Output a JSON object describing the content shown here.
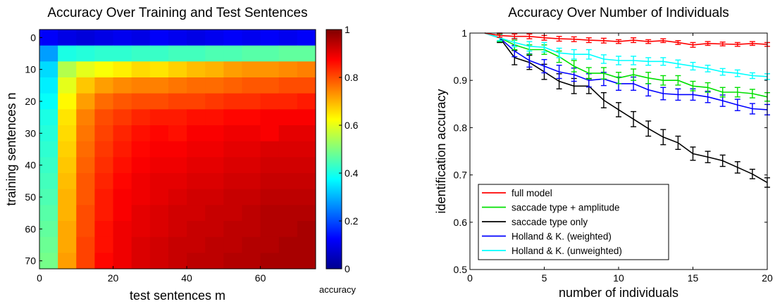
{
  "chart_data": [
    {
      "type": "heatmap",
      "title": "Accuracy Over Training and Test Sentences",
      "xlabel": "test sentences m",
      "ylabel": "training sentences n",
      "colorbar_label": "accuracy",
      "colormap": "jet",
      "xlim": [
        0,
        75
      ],
      "ylim": [
        0,
        75
      ],
      "x_ticks": [
        "0",
        "20",
        "40",
        "60"
      ],
      "y_ticks": [
        "0",
        "10",
        "20",
        "30",
        "40",
        "50",
        "60",
        "70"
      ],
      "colorbar_ticks": [
        "0",
        "0.2",
        "0.4",
        "0.6",
        "0.8",
        "1"
      ],
      "colorbar_range": [
        0,
        1
      ],
      "x": [
        0,
        5,
        10,
        15,
        20,
        25,
        30,
        35,
        40,
        45,
        50,
        55,
        60,
        65,
        70
      ],
      "y": [
        0,
        5,
        10,
        15,
        20,
        25,
        30,
        35,
        40,
        45,
        50,
        55,
        60,
        65,
        70
      ],
      "z": [
        [
          0.12,
          0.1,
          0.09,
          0.1,
          0.11,
          0.1,
          0.12,
          0.11,
          0.1,
          0.11,
          0.12,
          0.11,
          0.12,
          0.11,
          0.12
        ],
        [
          0.28,
          0.4,
          0.41,
          0.42,
          0.42,
          0.43,
          0.43,
          0.44,
          0.44,
          0.45,
          0.45,
          0.46,
          0.46,
          0.47,
          0.47
        ],
        [
          0.34,
          0.55,
          0.6,
          0.62,
          0.64,
          0.66,
          0.65,
          0.67,
          0.69,
          0.7,
          0.72,
          0.73,
          0.73,
          0.74,
          0.75
        ],
        [
          0.36,
          0.6,
          0.68,
          0.72,
          0.74,
          0.75,
          0.75,
          0.76,
          0.77,
          0.77,
          0.78,
          0.79,
          0.79,
          0.8,
          0.8
        ],
        [
          0.38,
          0.63,
          0.72,
          0.77,
          0.79,
          0.8,
          0.8,
          0.81,
          0.81,
          0.82,
          0.83,
          0.83,
          0.84,
          0.84,
          0.85
        ],
        [
          0.4,
          0.65,
          0.75,
          0.8,
          0.82,
          0.84,
          0.85,
          0.85,
          0.86,
          0.86,
          0.87,
          0.87,
          0.88,
          0.88,
          0.88
        ],
        [
          0.41,
          0.66,
          0.76,
          0.81,
          0.84,
          0.86,
          0.87,
          0.86,
          0.88,
          0.88,
          0.89,
          0.89,
          0.88,
          0.9,
          0.9
        ],
        [
          0.42,
          0.67,
          0.77,
          0.82,
          0.85,
          0.87,
          0.88,
          0.88,
          0.89,
          0.89,
          0.9,
          0.9,
          0.91,
          0.91,
          0.91
        ],
        [
          0.43,
          0.68,
          0.78,
          0.83,
          0.86,
          0.88,
          0.89,
          0.89,
          0.9,
          0.9,
          0.91,
          0.91,
          0.92,
          0.92,
          0.92
        ],
        [
          0.44,
          0.69,
          0.79,
          0.84,
          0.87,
          0.89,
          0.9,
          0.9,
          0.91,
          0.91,
          0.92,
          0.92,
          0.93,
          0.93,
          0.93
        ],
        [
          0.45,
          0.7,
          0.79,
          0.85,
          0.88,
          0.89,
          0.9,
          0.91,
          0.92,
          0.92,
          0.93,
          0.93,
          0.94,
          0.94,
          0.94
        ],
        [
          0.46,
          0.7,
          0.8,
          0.85,
          0.88,
          0.9,
          0.91,
          0.92,
          0.92,
          0.93,
          0.93,
          0.94,
          0.95,
          0.95,
          0.95
        ],
        [
          0.47,
          0.71,
          0.8,
          0.86,
          0.89,
          0.9,
          0.91,
          0.92,
          0.93,
          0.93,
          0.94,
          0.94,
          0.95,
          0.95,
          0.96
        ],
        [
          0.48,
          0.71,
          0.81,
          0.86,
          0.89,
          0.91,
          0.92,
          0.93,
          0.93,
          0.94,
          0.94,
          0.95,
          0.95,
          0.96,
          0.96
        ],
        [
          0.49,
          0.72,
          0.81,
          0.87,
          0.89,
          0.91,
          0.92,
          0.93,
          0.94,
          0.94,
          0.95,
          0.95,
          0.96,
          0.96,
          0.96
        ]
      ]
    },
    {
      "type": "line",
      "title": "Accuracy Over Number of Individuals",
      "xlabel": "number of individuals",
      "ylabel": "identification accuracy",
      "xlim": [
        0,
        20
      ],
      "ylim": [
        0.5,
        1
      ],
      "x_ticks": [
        "0",
        "5",
        "10",
        "15",
        "20"
      ],
      "y_ticks": [
        "0.5",
        "0.6",
        "0.7",
        "0.8",
        "0.9",
        "1"
      ],
      "legend_position": "bottom-left",
      "x": [
        1,
        2,
        3,
        4,
        5,
        6,
        7,
        8,
        9,
        10,
        11,
        12,
        13,
        14,
        15,
        16,
        17,
        18,
        19,
        20
      ],
      "series": [
        {
          "name": "full model",
          "color": "#ff0000",
          "values": [
            1.0,
            0.995,
            0.993,
            0.993,
            0.99,
            0.988,
            0.987,
            0.985,
            0.984,
            0.982,
            0.985,
            0.982,
            0.984,
            0.98,
            0.975,
            0.978,
            0.977,
            0.976,
            0.978,
            0.976
          ],
          "errors": [
            0,
            0.004,
            0.005,
            0.005,
            0.005,
            0.005,
            0.005,
            0.005,
            0.005,
            0.004,
            0.005,
            0.004,
            0.004,
            0.004,
            0.005,
            0.004,
            0.004,
            0.004,
            0.004,
            0.004
          ]
        },
        {
          "name": "saccade type + amplitude",
          "color": "#00e000",
          "values": [
            1.0,
            0.99,
            0.975,
            0.965,
            0.965,
            0.95,
            0.93,
            0.915,
            0.915,
            0.905,
            0.912,
            0.905,
            0.9,
            0.9,
            0.888,
            0.885,
            0.875,
            0.875,
            0.872,
            0.865
          ],
          "errors": [
            0,
            0.008,
            0.01,
            0.01,
            0.01,
            0.012,
            0.012,
            0.012,
            0.012,
            0.012,
            0.012,
            0.012,
            0.01,
            0.01,
            0.01,
            0.01,
            0.01,
            0.01,
            0.009,
            0.009
          ]
        },
        {
          "name": "saccade type only",
          "color": "#000000",
          "values": [
            1.0,
            0.99,
            0.948,
            0.938,
            0.918,
            0.898,
            0.888,
            0.888,
            0.858,
            0.838,
            0.818,
            0.798,
            0.78,
            0.768,
            0.745,
            0.738,
            0.73,
            0.716,
            0.702,
            0.684
          ],
          "errors": [
            0,
            0.01,
            0.015,
            0.015,
            0.016,
            0.016,
            0.016,
            0.016,
            0.016,
            0.015,
            0.016,
            0.016,
            0.016,
            0.014,
            0.014,
            0.012,
            0.012,
            0.012,
            0.01,
            0.01
          ]
        },
        {
          "name": "Holland & K. (weighted)",
          "color": "#0000ff",
          "values": [
            1.0,
            0.99,
            0.962,
            0.942,
            0.93,
            0.918,
            0.912,
            0.9,
            0.903,
            0.893,
            0.893,
            0.88,
            0.872,
            0.87,
            0.87,
            0.865,
            0.857,
            0.848,
            0.84,
            0.838
          ],
          "errors": [
            0,
            0.008,
            0.012,
            0.014,
            0.014,
            0.014,
            0.014,
            0.014,
            0.014,
            0.014,
            0.014,
            0.013,
            0.013,
            0.012,
            0.012,
            0.012,
            0.012,
            0.012,
            0.011,
            0.011
          ]
        },
        {
          "name": "Holland & K. (unweighted)",
          "color": "#00ffff",
          "values": [
            1.0,
            0.99,
            0.98,
            0.972,
            0.97,
            0.958,
            0.955,
            0.955,
            0.945,
            0.942,
            0.942,
            0.94,
            0.94,
            0.935,
            0.93,
            0.925,
            0.918,
            0.915,
            0.91,
            0.908
          ],
          "errors": [
            0,
            0.006,
            0.009,
            0.01,
            0.01,
            0.01,
            0.01,
            0.01,
            0.009,
            0.009,
            0.009,
            0.008,
            0.008,
            0.008,
            0.008,
            0.007,
            0.007,
            0.007,
            0.006,
            0.006
          ]
        }
      ]
    }
  ]
}
